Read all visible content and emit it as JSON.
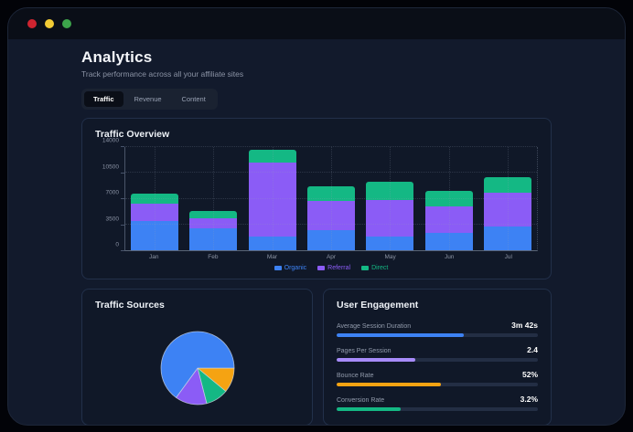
{
  "window": {
    "controls": [
      "close",
      "minimize",
      "maximize"
    ],
    "control_colors": {
      "close": "#cf2430",
      "minimize": "#f2cb35",
      "maximize": "#3da44b"
    }
  },
  "header": {
    "title": "Analytics",
    "subtitle": "Track performance across all your affiliate sites"
  },
  "tabs": [
    {
      "label": "Traffic",
      "active": true
    },
    {
      "label": "Revenue",
      "active": false
    },
    {
      "label": "Content",
      "active": false
    }
  ],
  "traffic_overview": {
    "title": "Traffic Overview"
  },
  "traffic_sources": {
    "title": "Traffic Sources"
  },
  "user_engagement": {
    "title": "User Engagement",
    "metrics": [
      {
        "label": "Average Session Duration",
        "value": "3m 42s",
        "fill_percent": 63,
        "color": "#3d82f4"
      },
      {
        "label": "Pages Per Session",
        "value": "2.4",
        "fill_percent": 39,
        "color": "#a78bfa"
      },
      {
        "label": "Bounce Rate",
        "value": "52%",
        "fill_percent": 52,
        "color": "#f5a312"
      },
      {
        "label": "Conversion Rate",
        "value": "3.2%",
        "fill_percent": 32,
        "color": "#14b884"
      }
    ]
  },
  "chart_data": [
    {
      "id": "traffic-overview-bar",
      "type": "bar",
      "stacked": true,
      "title": "Traffic Overview",
      "categories": [
        "Jan",
        "Feb",
        "Mar",
        "Apr",
        "May",
        "Jun",
        "Jul"
      ],
      "series": [
        {
          "name": "Organic",
          "color": "#3d82f4",
          "values": [
            3900,
            2900,
            1900,
            2700,
            1800,
            2300,
            3200
          ]
        },
        {
          "name": "Referral",
          "color": "#8b5cf6",
          "values": [
            2400,
            1400,
            9900,
            3900,
            4900,
            3600,
            4500
          ]
        },
        {
          "name": "Direct",
          "color": "#14b884",
          "values": [
            1300,
            1000,
            1700,
            2000,
            2500,
            2100,
            2100
          ]
        }
      ],
      "ylim": [
        0,
        14000
      ],
      "yticks": [
        0,
        3500,
        7000,
        10500,
        14000
      ],
      "grid": true,
      "legend_position": "bottom"
    },
    {
      "id": "traffic-sources-pie",
      "type": "pie",
      "title": "Traffic Sources",
      "start_angle": "3-oclock",
      "direction": "clockwise",
      "slices": [
        {
          "color": "#f5a312",
          "percent": 11
        },
        {
          "color": "#14b884",
          "percent": 10
        },
        {
          "color": "#8b5cf6",
          "percent": 14
        },
        {
          "color": "#3d82f4",
          "percent": 65
        }
      ]
    }
  ]
}
